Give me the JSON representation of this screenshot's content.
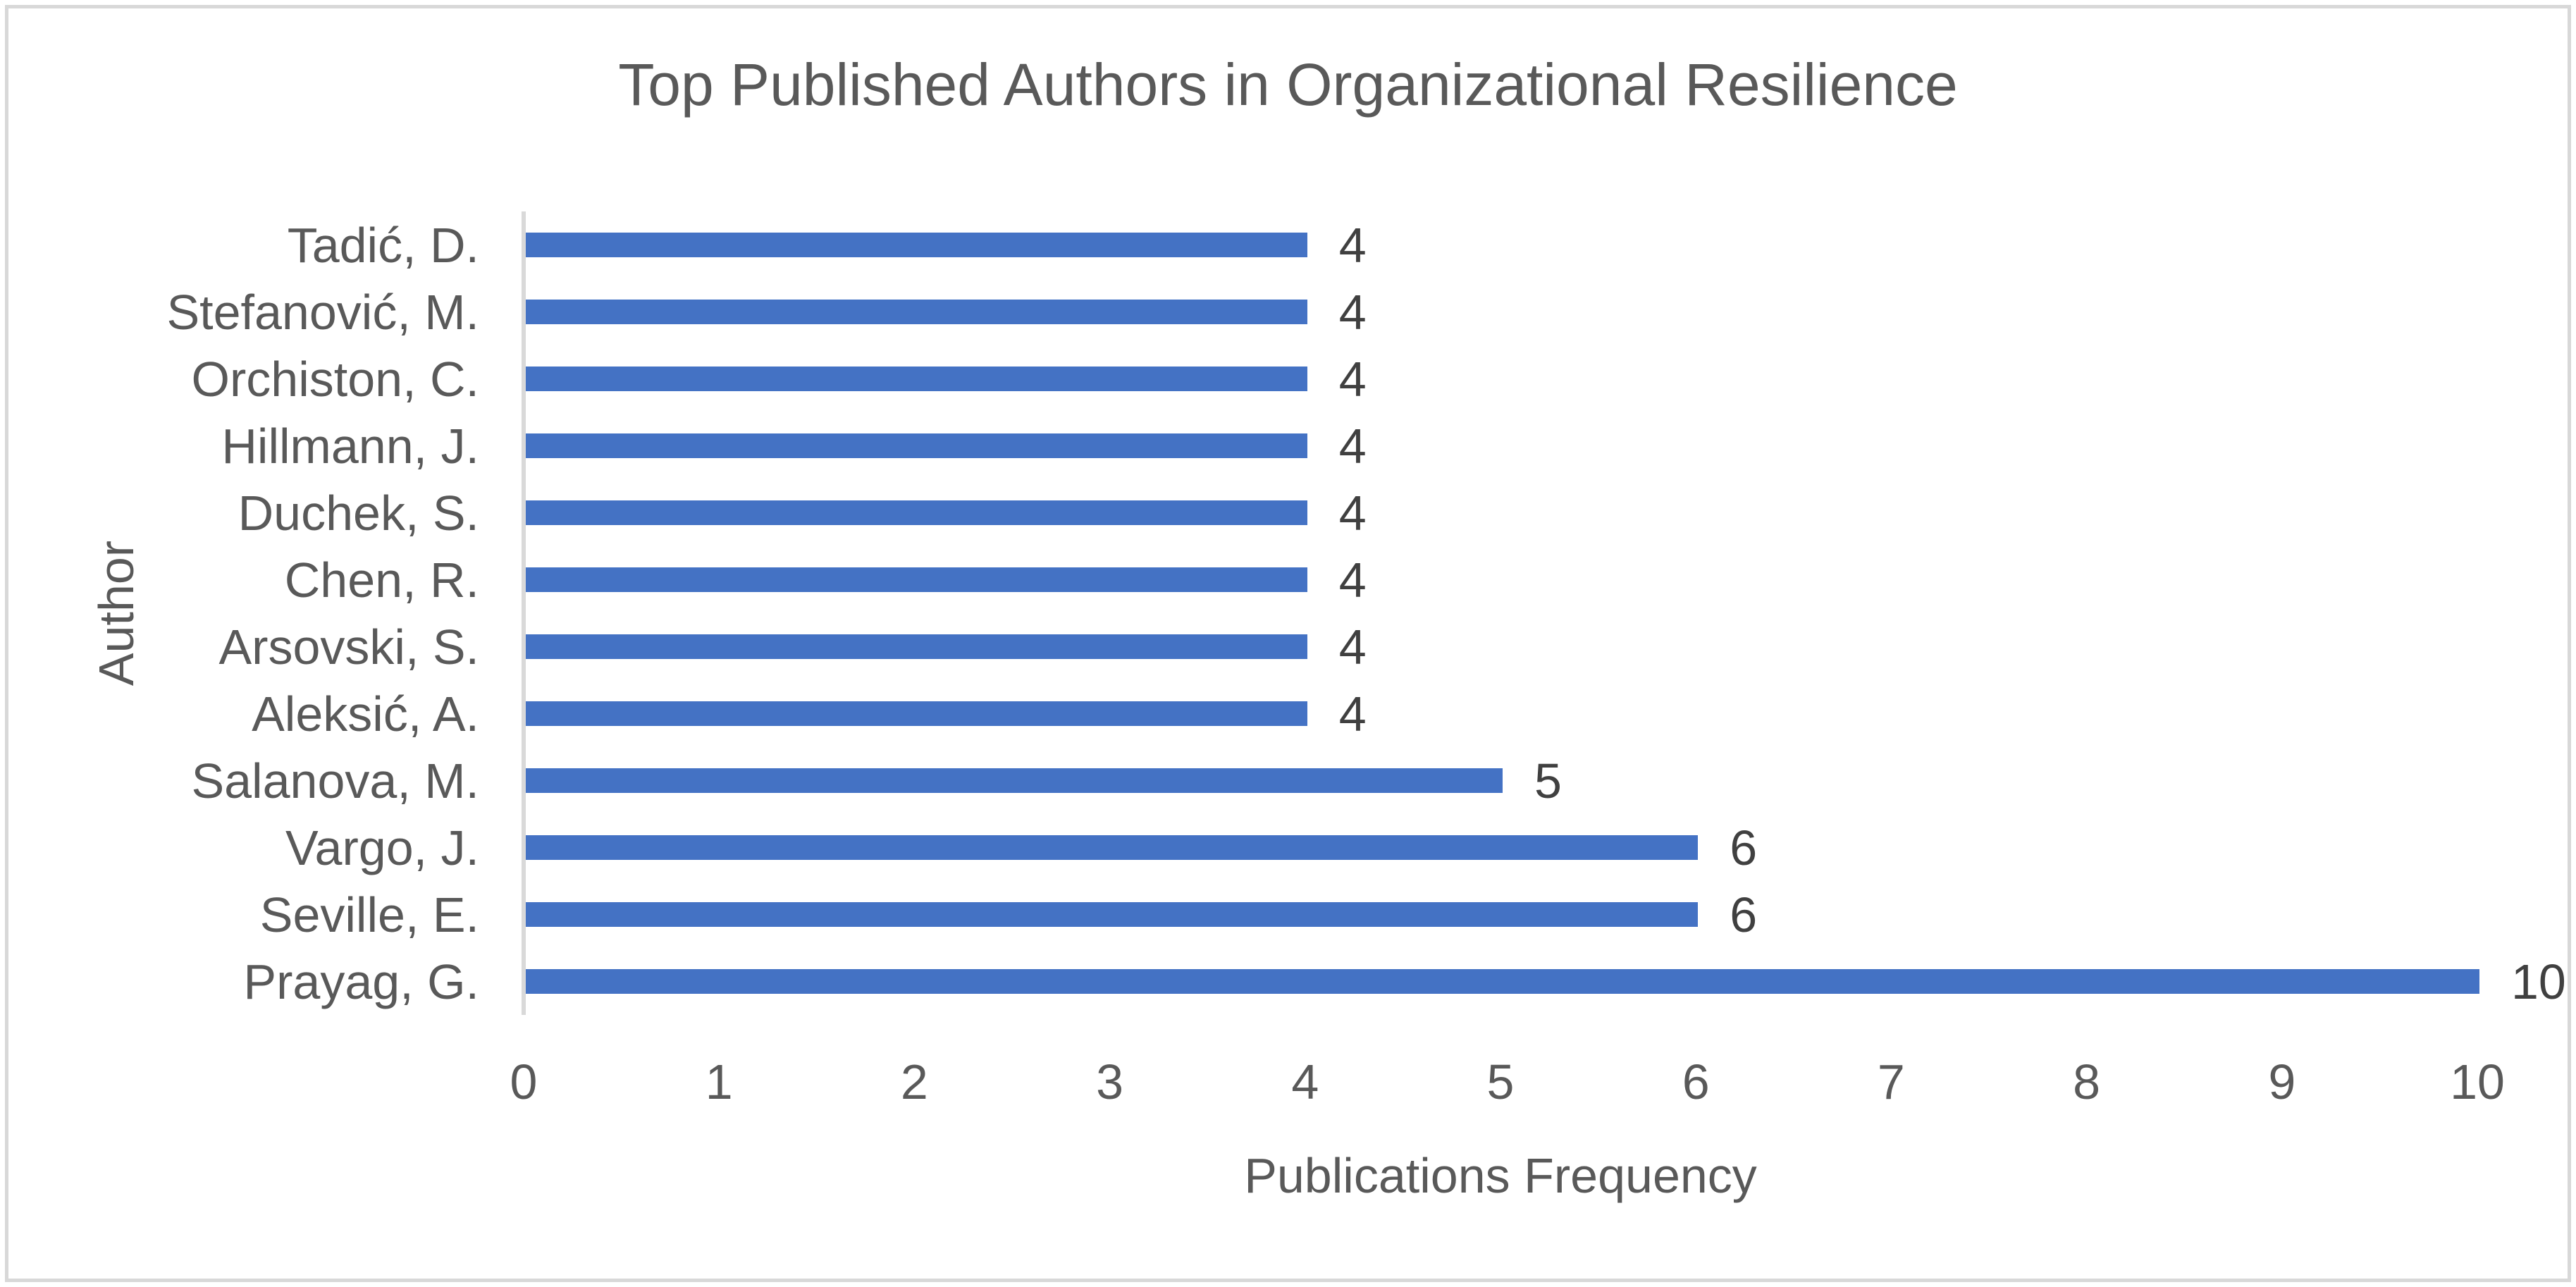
{
  "chart_data": {
    "type": "bar",
    "orientation": "horizontal",
    "title": "Top Published Authors in Organizational Resilience",
    "xlabel": "Publications Frequency",
    "ylabel": "Author",
    "categories": [
      "Tadić, D.",
      "Stefanović, M.",
      "Orchiston, C.",
      "Hillmann, J.",
      "Duchek, S.",
      "Chen, R.",
      "Arsovski, S.",
      "Aleksić, A.",
      "Salanova, M.",
      "Vargo, J.",
      "Seville, E.",
      "Prayag, G."
    ],
    "values": [
      4,
      4,
      4,
      4,
      4,
      4,
      4,
      4,
      5,
      6,
      6,
      10
    ],
    "data_labels": [
      "4",
      "4",
      "4",
      "4",
      "4",
      "4",
      "4",
      "4",
      "5",
      "6",
      "6",
      "10"
    ],
    "xlim": [
      0,
      10
    ],
    "xticks": [
      0,
      1,
      2,
      3,
      4,
      5,
      6,
      7,
      8,
      9,
      10
    ],
    "grid": false,
    "legend": "none",
    "bar_color": "#4472C4",
    "axis_line_color": "#D9D9D9",
    "text_color": "#595959",
    "data_label_color": "#404040"
  }
}
